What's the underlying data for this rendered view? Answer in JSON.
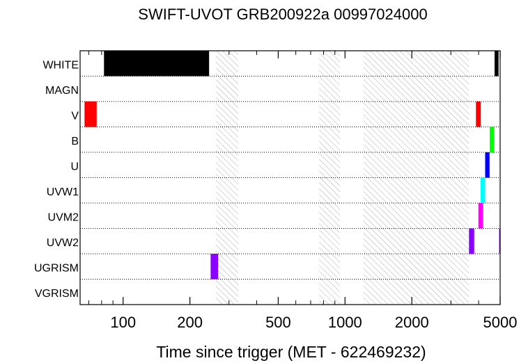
{
  "chart_data": {
    "type": "timeline",
    "title": "SWIFT-UVOT GRB200922a 00997024000",
    "xlabel": "Time since trigger (MET - 622469232)",
    "ylabel": "",
    "x_scale": "log",
    "xlim": [
      64,
      5000
    ],
    "x_ticks": [
      {
        "value": 100,
        "label": "100"
      },
      {
        "value": 200,
        "label": "200"
      },
      {
        "value": 500,
        "label": "500"
      },
      {
        "value": 1000,
        "label": "1000"
      },
      {
        "value": 2000,
        "label": "2000"
      },
      {
        "value": 5000,
        "label": "5000"
      }
    ],
    "filters": [
      "WHITE",
      "MAGN",
      "V",
      "B",
      "U",
      "UVW1",
      "UVM2",
      "UVW2",
      "UGRISM",
      "VGRISM"
    ],
    "gaps": [
      {
        "start": 262,
        "end": 330
      },
      {
        "start": 765,
        "end": 950
      },
      {
        "start": 1210,
        "end": 3620
      }
    ],
    "exposures": [
      {
        "filter": "WHITE",
        "start": 82,
        "end": 244,
        "color": "#000000"
      },
      {
        "filter": "WHITE",
        "start": 4720,
        "end": 4920,
        "color": "#000000"
      },
      {
        "filter": "V",
        "start": 67,
        "end": 76,
        "color": "#ff0000"
      },
      {
        "filter": "V",
        "start": 3890,
        "end": 4090,
        "color": "#ff0000"
      },
      {
        "filter": "B",
        "start": 4490,
        "end": 4690,
        "color": "#00ff00"
      },
      {
        "filter": "U",
        "start": 4280,
        "end": 4480,
        "color": "#0000ff"
      },
      {
        "filter": "UVW1",
        "start": 4080,
        "end": 4280,
        "color": "#00ffff"
      },
      {
        "filter": "UVM2",
        "start": 3990,
        "end": 4190,
        "color": "#ff00ff"
      },
      {
        "filter": "UVW2",
        "start": 3620,
        "end": 3820,
        "color": "#8a00ff"
      },
      {
        "filter": "UVW2",
        "start": 4950,
        "end": 5100,
        "color": "#8a00ff"
      },
      {
        "filter": "UGRISM",
        "start": 248,
        "end": 268,
        "color": "#8a00ff"
      }
    ],
    "grid": false,
    "legend": "none"
  }
}
